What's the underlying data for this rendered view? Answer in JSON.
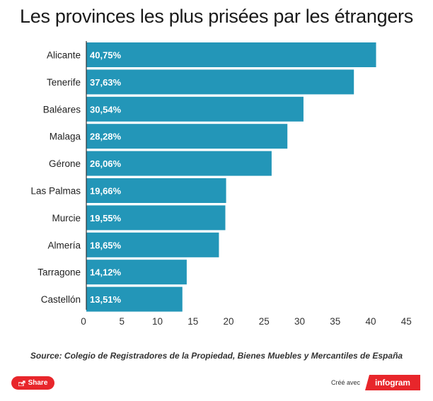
{
  "title": "Les provinces les plus prisées par les étrangers",
  "source": "Source: Colegio de Registradores de la Propiedad, Bienes Muebles y Mercantiles de España",
  "footer": {
    "share_label": "Share",
    "credit_label": "Créé avec",
    "brand_label": "infogram"
  },
  "colors": {
    "bar": "#2396b8",
    "share": "#e8262b",
    "brand": "#e8262b"
  },
  "chart_data": {
    "type": "bar",
    "orientation": "horizontal",
    "categories": [
      "Alicante",
      "Tenerife",
      "Baléares",
      "Malaga",
      "Gérone",
      "Las Palmas",
      "Murcie",
      "Almería",
      "Tarragone",
      "Castellón"
    ],
    "values": [
      40.75,
      37.63,
      30.54,
      28.28,
      26.06,
      19.66,
      19.55,
      18.65,
      14.12,
      13.51
    ],
    "value_labels": [
      "40,75%",
      "37,63%",
      "30,54%",
      "28,28%",
      "26,06%",
      "19,66%",
      "19,55%",
      "18,65%",
      "14,12%",
      "13,51%"
    ],
    "x_ticks": [
      "0",
      "5",
      "10",
      "15",
      "20",
      "25",
      "30",
      "35",
      "40",
      "45"
    ],
    "xlim": [
      0,
      45
    ],
    "grid": false,
    "legend": "none"
  }
}
